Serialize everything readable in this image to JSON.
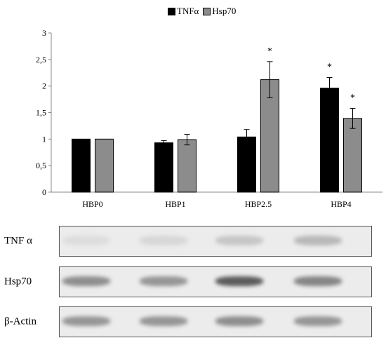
{
  "chart_data": {
    "type": "bar",
    "categories": [
      "HBP0",
      "HBP1",
      "HBP2.5",
      "HBP4"
    ],
    "series": [
      {
        "name": "TNFα",
        "values": [
          1.0,
          0.93,
          1.04,
          1.96
        ],
        "errors": [
          0.0,
          0.04,
          0.14,
          0.2
        ],
        "significant": [
          false,
          false,
          false,
          true
        ],
        "color": "#000000"
      },
      {
        "name": "Hsp70",
        "values": [
          1.0,
          0.99,
          2.12,
          1.39
        ],
        "errors": [
          0.0,
          0.1,
          0.34,
          0.19
        ],
        "significant": [
          false,
          false,
          true,
          true
        ],
        "color": "#8c8c8c"
      }
    ],
    "ylim": [
      0,
      3
    ],
    "yticks": [
      "0",
      "0,5",
      "1",
      "1,5",
      "2",
      "2,5",
      "3"
    ],
    "significance_marker": "*",
    "legend_position": "top-center",
    "grid": false
  },
  "blot": {
    "rows": [
      {
        "label": "TNF α",
        "intensities": [
          0.08,
          0.12,
          0.22,
          0.3
        ]
      },
      {
        "label": "Hsp70",
        "intensities": [
          0.55,
          0.5,
          0.85,
          0.6
        ]
      },
      {
        "label": "β-Actin",
        "intensities": [
          0.5,
          0.5,
          0.55,
          0.5
        ]
      }
    ]
  }
}
